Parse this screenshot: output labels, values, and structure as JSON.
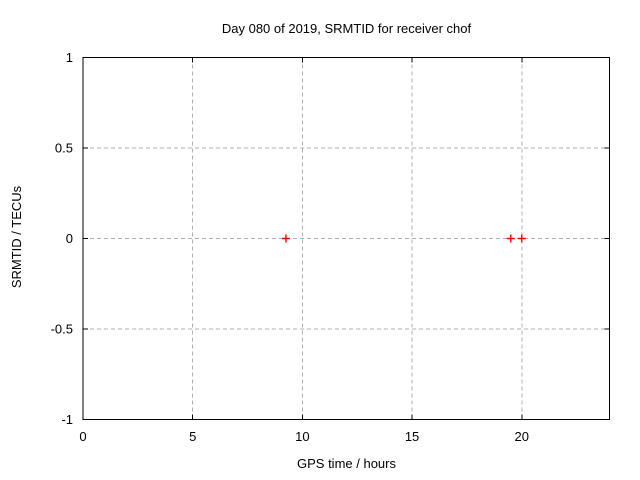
{
  "chart_data": {
    "type": "scatter",
    "title": "Day 080 of 2019, SRMTID for receiver chof",
    "xlabel": "GPS time / hours",
    "ylabel": "SRMTID / TECUs",
    "xlim": [
      0,
      24
    ],
    "ylim": [
      -1,
      1
    ],
    "xticks": [
      0,
      5,
      10,
      15,
      20
    ],
    "xtick_labels": [
      "0",
      "5",
      "10",
      "15",
      "20"
    ],
    "yticks": [
      -1,
      -0.5,
      0,
      0.5,
      1
    ],
    "ytick_labels": [
      "-1",
      "-0.5",
      "0",
      "0.5",
      "1"
    ],
    "grid": true,
    "grid_style": "dashed",
    "legend_position": "none",
    "series": [
      {
        "name": "SRMTID",
        "marker": "plus",
        "color": "#ff0000",
        "points": [
          [
            9.25,
            0
          ],
          [
            19.5,
            0
          ],
          [
            20.0,
            0
          ]
        ]
      }
    ],
    "colors": {
      "background": "#ffffff",
      "frame": "#000000",
      "grid": "#b0b0b0",
      "text": "#000000",
      "marker": "#ff0000"
    }
  }
}
